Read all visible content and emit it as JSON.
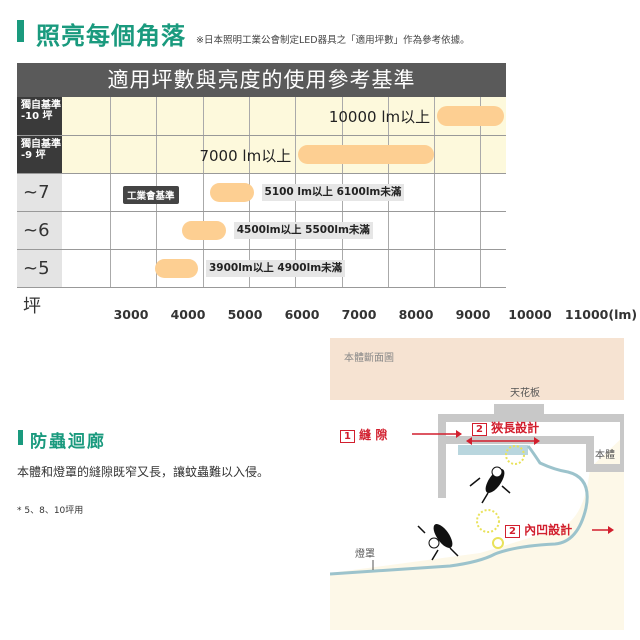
{
  "section1": {
    "title": "照亮每個角落",
    "note": "※日本照明工業公會制定LED器具之「適用坪數」作為參考依據。",
    "accent": "#1a9a7e"
  },
  "chart_data": {
    "type": "bar",
    "orientation": "horizontal-range",
    "title": "適用坪數與亮度的使用參考基準",
    "xlabel": "(lm)",
    "xlim": [
      3000,
      11000
    ],
    "x_ticks": [
      "3000",
      "4000",
      "5000",
      "6000",
      "7000",
      "8000",
      "9000",
      "10000",
      "11000(lm)"
    ],
    "grid": true,
    "bar_color": "#fdcf92",
    "badge": "工業會基準",
    "rows": [
      {
        "label_line1": "獨自基準",
        "label_line2": "-10 坪",
        "range": [
          10000,
          11500
        ],
        "value_label": "10000 lm以上"
      },
      {
        "label_line1": "獨自基準",
        "label_line2": "-9 坪",
        "range": [
          7000,
          10000
        ],
        "value_label": "7000 lm以上"
      },
      {
        "label_line1": "~7 坪",
        "label_line2": "",
        "range": [
          5100,
          6100
        ],
        "value_label": "5100 lm以上 6100lm未滿"
      },
      {
        "label_line1": "~6 坪",
        "label_line2": "",
        "range": [
          4500,
          5500
        ],
        "value_label": "4500lm以上 5500lm未滿"
      },
      {
        "label_line1": "~5 坪",
        "label_line2": "",
        "range": [
          3900,
          4900
        ],
        "value_label": "3900lm以上 4900lm未滿"
      }
    ]
  },
  "section2": {
    "title": "防蟲迴廊",
    "body": "本體和燈罩的縫隙既窄又長，讓蚊蟲難以入侵。",
    "footnote": "* 5、8、10坪用"
  },
  "diagram": {
    "title": "本體斷面圖",
    "ceiling": "天花板",
    "body_label": "本體",
    "cover_label": "燈罩",
    "gap_num": "1",
    "gap_label": "縫 隙",
    "narrow_num": "2",
    "narrow_label": "狹長設計",
    "recess_num": "2",
    "recess_label": "內凹設計",
    "red": "#d21f2e"
  }
}
